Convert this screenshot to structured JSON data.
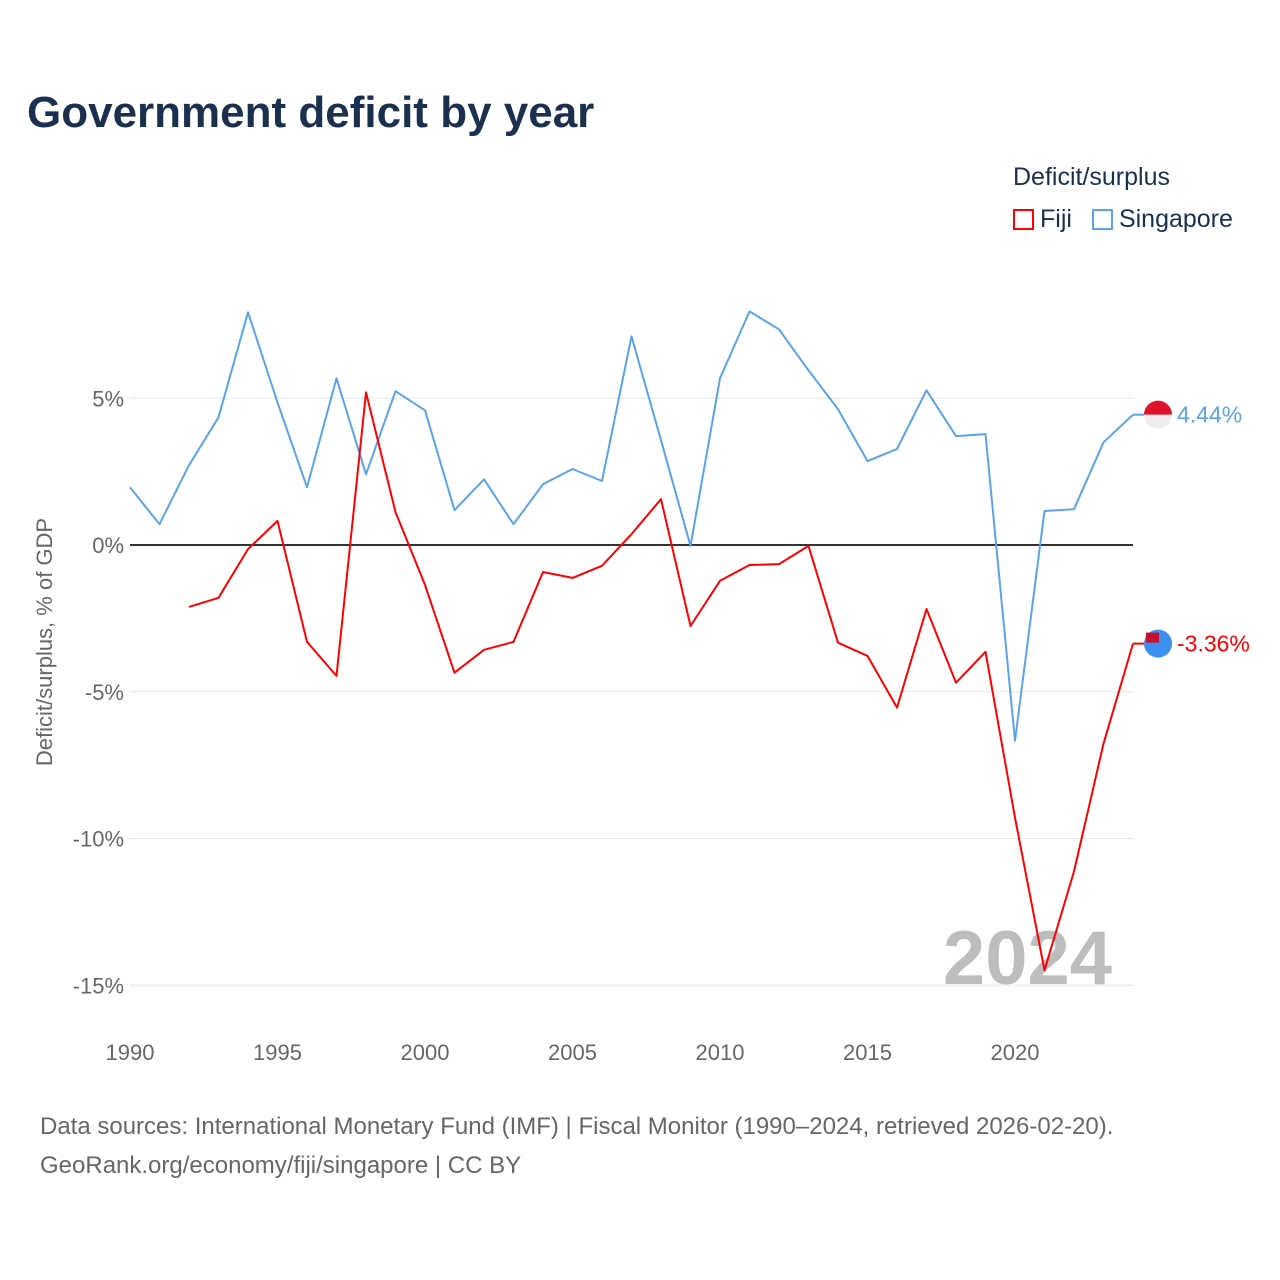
{
  "title": "Government deficit by year",
  "legend": {
    "title": "Deficit/surplus"
  },
  "source": {
    "line1": "Data sources: International Monetary Fund (IMF) | Fiscal Monitor (1990–2024, retrieved 2026-02-20).",
    "line2": "GeoRank.org/economy/fiji/singapore | CC BY"
  },
  "chart_data": {
    "type": "line",
    "title": "Government deficit by year",
    "xlabel": "",
    "ylabel": "Deficit/surplus, % of GDP",
    "xlim": [
      1990,
      2024
    ],
    "ylim": [
      -15,
      8
    ],
    "x_ticks": [
      1990,
      1995,
      2000,
      2005,
      2010,
      2015,
      2020
    ],
    "y_ticks": [
      {
        "v": 5,
        "label": "5%"
      },
      {
        "v": 0,
        "label": "0%"
      },
      {
        "v": -5,
        "label": "-5%"
      },
      {
        "v": -10,
        "label": "-10%"
      },
      {
        "v": -15,
        "label": "-15%"
      }
    ],
    "watermark_year": "2024",
    "series": [
      {
        "name": "Fiji",
        "color": "#ff0000",
        "end_label": "-3.36%",
        "start": 1992,
        "values": [
          -2.11,
          -1.8,
          -0.14,
          0.82,
          -3.3,
          -4.46,
          5.2,
          1.12,
          -1.36,
          -4.35,
          -3.57,
          -3.3,
          -0.92,
          -1.12,
          -0.71,
          0.37,
          1.56,
          -2.76,
          -1.22,
          -0.68,
          -0.65,
          -0.03,
          -3.33,
          -3.78,
          -5.54,
          -2.18,
          -4.69,
          -3.64,
          -9.29,
          -14.49,
          -11.12,
          -6.77,
          -3.36
        ]
      },
      {
        "name": "Singapore",
        "color": "#5ba3e8",
        "end_label": "4.44%",
        "start": 1990,
        "values": [
          1.97,
          0.71,
          2.72,
          4.35,
          7.93,
          4.86,
          1.97,
          5.68,
          2.41,
          5.24,
          4.59,
          1.19,
          2.24,
          0.71,
          2.07,
          2.59,
          2.18,
          7.11,
          3.57,
          -0.03,
          5.68,
          7.96,
          7.35,
          5.95,
          4.63,
          2.86,
          3.27,
          5.27,
          3.71,
          3.78,
          -6.67,
          1.16,
          1.22,
          3.5,
          4.44
        ]
      }
    ]
  }
}
